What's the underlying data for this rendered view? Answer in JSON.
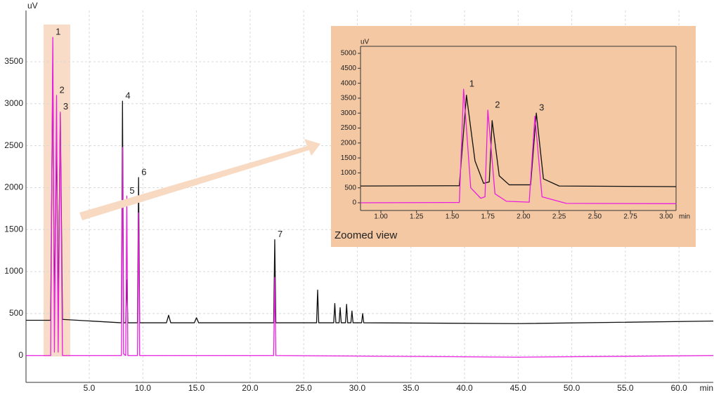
{
  "chart_data": [
    {
      "type": "line",
      "y_label": "uV",
      "x_label": "min",
      "grid": true,
      "xlim": [
        -0.9,
        63.2
      ],
      "ylim": [
        -320,
        4110
      ],
      "xticks": [
        {
          "value": 5,
          "label": "5.0"
        },
        {
          "value": 10,
          "label": "10.0"
        },
        {
          "value": 15,
          "label": "15.0"
        },
        {
          "value": 20,
          "label": "20.0"
        },
        {
          "value": 25,
          "label": "25.0"
        },
        {
          "value": 30,
          "label": "30.0"
        },
        {
          "value": 35,
          "label": "35.0"
        },
        {
          "value": 40,
          "label": "40.0"
        },
        {
          "value": 45,
          "label": "45.0"
        },
        {
          "value": 50,
          "label": "50.0"
        },
        {
          "value": 55,
          "label": "55.0"
        },
        {
          "value": 60,
          "label": "60.0"
        }
      ],
      "yticks": [
        0,
        500,
        1000,
        1500,
        2000,
        2500,
        3000,
        3500
      ],
      "series": [
        {
          "color": "#111111",
          "x": [
            -0.9,
            1.4,
            1.6,
            1.75,
            1.95,
            2.1,
            2.3,
            2.5,
            8.0,
            8.1,
            8.2,
            8.4,
            8.5,
            8.6,
            9.5,
            9.6,
            9.7,
            12.2,
            12.4,
            12.6,
            14.8,
            15.0,
            15.2,
            22.2,
            22.3,
            22.4,
            26.2,
            26.3,
            26.4,
            27.8,
            27.9,
            28.0,
            28.3,
            28.4,
            28.5,
            28.9,
            29.0,
            29.1,
            29.4,
            29.5,
            29.6,
            30.4,
            30.5,
            30.6,
            45,
            63.2
          ],
          "values": [
            420,
            420,
            3480,
            480,
            2650,
            470,
            2880,
            430,
            390,
            3030,
            390,
            390,
            900,
            390,
            390,
            2120,
            390,
            390,
            480,
            390,
            390,
            450,
            390,
            390,
            1380,
            390,
            390,
            780,
            390,
            390,
            620,
            390,
            390,
            570,
            390,
            390,
            610,
            390,
            390,
            530,
            390,
            390,
            500,
            390,
            380,
            410
          ]
        },
        {
          "color": "#e91ee0",
          "x": [
            -0.9,
            1.4,
            1.6,
            1.75,
            1.95,
            2.1,
            2.3,
            2.5,
            8.0,
            8.1,
            8.2,
            8.4,
            8.5,
            8.6,
            9.5,
            9.6,
            9.7,
            22.2,
            22.3,
            22.4,
            45,
            63.2
          ],
          "values": [
            0,
            0,
            3790,
            40,
            3100,
            40,
            2900,
            0,
            0,
            2480,
            20,
            0,
            1900,
            0,
            0,
            1700,
            0,
            0,
            930,
            0,
            -20,
            0
          ]
        }
      ],
      "annotations": [
        {
          "text": "1",
          "x": 1.6,
          "y": 3790
        },
        {
          "text": "2",
          "x": 1.95,
          "y": 3100
        },
        {
          "text": "3",
          "x": 2.3,
          "y": 2900
        },
        {
          "text": "4",
          "x": 8.1,
          "y": 3030
        },
        {
          "text": "5",
          "x": 8.5,
          "y": 1900
        },
        {
          "text": "6",
          "x": 9.6,
          "y": 2120
        },
        {
          "text": "7",
          "x": 22.3,
          "y": 1380
        }
      ]
    },
    {
      "type": "line",
      "y_label": "uV",
      "x_label": "min",
      "note": "Zoomed view",
      "grid": false,
      "xlim": [
        0.857,
        3.07
      ],
      "ylim": [
        -258,
        5235
      ],
      "xticks": [
        {
          "value": 1,
          "label": "1.00"
        },
        {
          "value": 1.25,
          "label": "1.25"
        },
        {
          "value": 1.5,
          "label": "1.50"
        },
        {
          "value": 1.75,
          "label": "1.75"
        },
        {
          "value": 2,
          "label": "2.00"
        },
        {
          "value": 2.25,
          "label": "2.25"
        },
        {
          "value": 2.5,
          "label": "2.50"
        },
        {
          "value": 2.75,
          "label": "2.75"
        },
        {
          "value": 3,
          "label": "3.00"
        }
      ],
      "yticks": [
        0,
        500,
        1000,
        1500,
        2000,
        2500,
        3000,
        3500,
        4000,
        4500,
        5000
      ],
      "series": [
        {
          "color": "#111111",
          "x": [
            0.857,
            1.55,
            1.6,
            1.66,
            1.72,
            1.76,
            1.78,
            1.83,
            1.9,
            2.05,
            2.09,
            2.14,
            2.25,
            3.07
          ],
          "values": [
            560,
            570,
            3600,
            1400,
            650,
            700,
            2750,
            900,
            600,
            600,
            3000,
            800,
            560,
            540
          ]
        },
        {
          "color": "#e91ee0",
          "x": [
            0.857,
            1.55,
            1.58,
            1.63,
            1.7,
            1.73,
            1.75,
            1.8,
            1.88,
            2.04,
            2.08,
            2.13,
            2.3,
            3.07
          ],
          "values": [
            0,
            10,
            3800,
            500,
            150,
            200,
            3100,
            300,
            50,
            20,
            2900,
            200,
            -20,
            -30
          ]
        }
      ],
      "annotations": [
        {
          "text": "1",
          "x": 1.6,
          "y": 3800
        },
        {
          "text": "2",
          "x": 1.78,
          "y": 3100
        },
        {
          "text": "3",
          "x": 2.09,
          "y": 3000
        }
      ]
    }
  ]
}
